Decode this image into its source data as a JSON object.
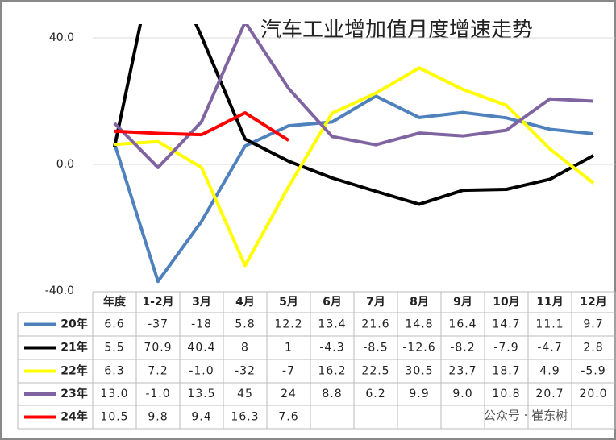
{
  "chart_data": {
    "type": "line",
    "title": "汽车工业增加值月度增速走势",
    "watermark": "公众号 · 崔东树",
    "categories": [
      "年度",
      "1-2月",
      "3月",
      "4月",
      "5月",
      "6月",
      "7月",
      "8月",
      "9月",
      "10月",
      "11月",
      "12月"
    ],
    "ylim": [
      -40,
      40
    ],
    "yticks": [
      {
        "value": -40,
        "label": "-40.0"
      },
      {
        "value": 0,
        "label": "0.0"
      },
      {
        "value": 40,
        "label": "40.0"
      }
    ],
    "grid": true,
    "series": [
      {
        "name": "20年",
        "color": "#4f81bd",
        "values": [
          6.6,
          -37,
          -18,
          5.8,
          12.2,
          13.4,
          21.6,
          14.8,
          16.4,
          14.7,
          11.1,
          9.7
        ],
        "value_labels": [
          "6.6",
          "-37",
          "-18",
          "5.8",
          "12.2",
          "13.4",
          "21.6",
          "14.8",
          "16.4",
          "14.7",
          "11.1",
          "9.7"
        ]
      },
      {
        "name": "21年",
        "color": "#000000",
        "values": [
          5.5,
          70.9,
          40.4,
          8,
          1,
          -4.3,
          -8.5,
          -12.6,
          -8.2,
          -7.9,
          -4.7,
          2.8
        ],
        "value_labels": [
          "5.5",
          "70.9",
          "40.4",
          "8",
          "1",
          "-4.3",
          "-8.5",
          "-12.6",
          "-8.2",
          "-7.9",
          "-4.7",
          "2.8"
        ]
      },
      {
        "name": "22年",
        "color": "#ffff00",
        "values": [
          6.3,
          7.2,
          -1,
          -32,
          -7,
          16.2,
          22.5,
          30.5,
          23.7,
          18.7,
          4.9,
          -5.9
        ],
        "value_labels": [
          "6.3",
          "7.2",
          "-1.0",
          "-32",
          "-7",
          "16.2",
          "22.5",
          "30.5",
          "23.7",
          "18.7",
          "4.9",
          "-5.9"
        ]
      },
      {
        "name": "23年",
        "color": "#8064a2",
        "values": [
          13,
          -1,
          13.5,
          45,
          24,
          8.8,
          6.2,
          9.9,
          9,
          10.8,
          20.7,
          20
        ],
        "value_labels": [
          "13.0",
          "-1.0",
          "13.5",
          "45",
          "24",
          "8.8",
          "6.2",
          "9.9",
          "9.0",
          "10.8",
          "20.7",
          "20.0"
        ]
      },
      {
        "name": "24年",
        "color": "#ff0000",
        "values": [
          10.5,
          9.8,
          9.4,
          16.3,
          7.6,
          null,
          null,
          null,
          null,
          null,
          null,
          null
        ],
        "value_labels": [
          "10.5",
          "9.8",
          "9.4",
          "16.3",
          "7.6",
          null,
          null,
          null,
          null,
          null,
          null,
          null
        ]
      }
    ]
  }
}
